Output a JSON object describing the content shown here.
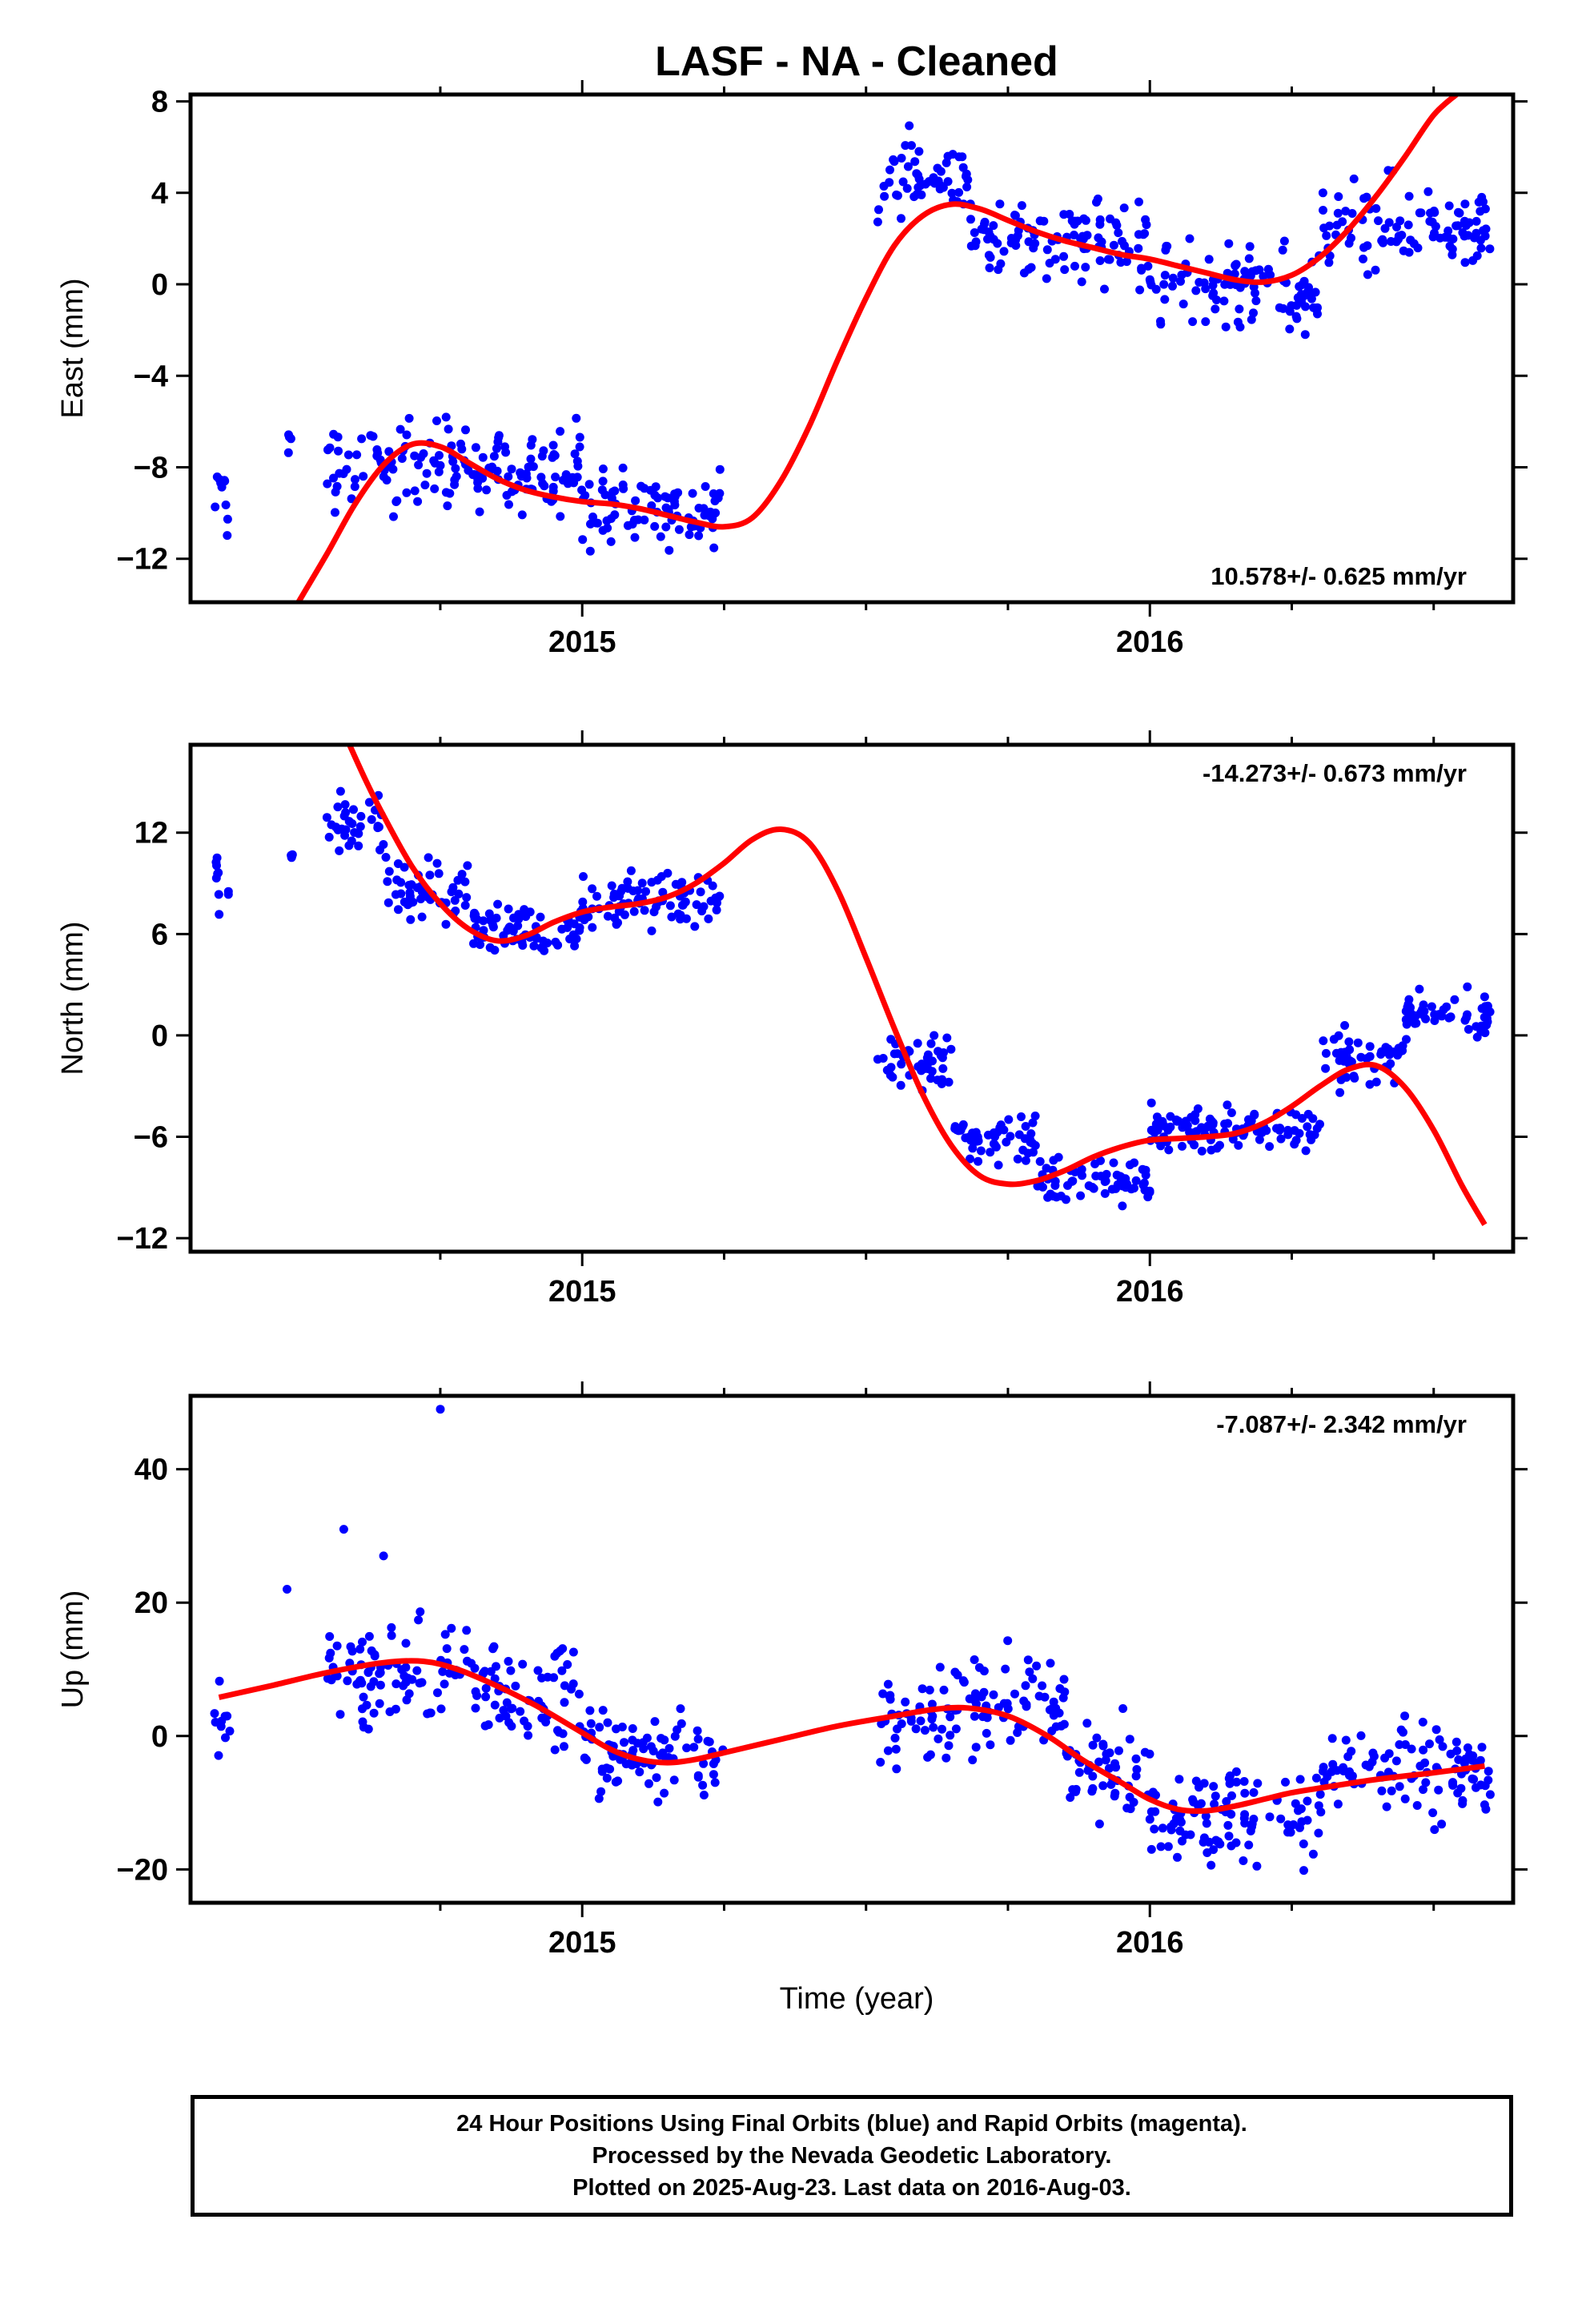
{
  "title": "LASF  - NA - Cleaned",
  "colors": {
    "points": "#0000ff",
    "fit": "#ff0000",
    "axes": "#000000",
    "background": "#ffffff"
  },
  "xlabel": "Time (year)",
  "footer": {
    "line1": "24 Hour Positions Using Final Orbits (blue) and Rapid Orbits (magenta).",
    "line2": "Processed by the Nevada Geodetic Laboratory.",
    "line3": "Plotted on 2025-Aug-23. Last data on 2016-Aug-03."
  },
  "chart_data": [
    {
      "type": "scatter",
      "name_key": "east",
      "ylabel": "East (mm)",
      "rate_label": "10.578+/- 0.625 mm/yr",
      "rate_position": "bottom-right",
      "xlim": [
        2014.31,
        2016.64
      ],
      "ylim": [
        -13.9,
        8.3
      ],
      "x_tick_labels": [
        "2015",
        "2016"
      ],
      "y_ticks": [
        -12,
        -8,
        -4,
        0,
        4,
        8
      ],
      "data_gap": [
        2015.25,
        2015.51
      ],
      "clusters": [
        {
          "x_range": [
            2014.35,
            2014.38
          ],
          "y_center": -9.5,
          "spread": 1.6
        },
        {
          "x_range": [
            2014.48,
            2014.49
          ],
          "y_center": -6.5,
          "spread": 1.0
        },
        {
          "x_range": [
            2014.55,
            2015.0
          ],
          "y_center": -8.0,
          "spread": 1.7
        },
        {
          "x_range": [
            2015.0,
            2015.25
          ],
          "y_center": -9.8,
          "spread": 1.5
        },
        {
          "x_range": [
            2015.52,
            2015.68
          ],
          "y_center": 4.6,
          "spread": 1.6
        },
        {
          "x_range": [
            2015.68,
            2016.0
          ],
          "y_center": 2.0,
          "spread": 1.6
        },
        {
          "x_range": [
            2016.0,
            2016.3
          ],
          "y_center": -0.3,
          "spread": 1.7
        },
        {
          "x_range": [
            2016.3,
            2016.6
          ],
          "y_center": 2.5,
          "spread": 1.8
        }
      ],
      "fit": {
        "x": [
          2014.5,
          2014.55,
          2014.6,
          2014.65,
          2014.7,
          2014.75,
          2014.8,
          2014.85,
          2014.9,
          2014.95,
          2015.0,
          2015.05,
          2015.1,
          2015.15,
          2015.2,
          2015.25,
          2015.3,
          2015.35,
          2015.4,
          2015.45,
          2015.5,
          2015.55,
          2015.6,
          2015.65,
          2015.7,
          2015.75,
          2015.8,
          2015.85,
          2015.9,
          2015.95,
          2016.0,
          2016.05,
          2016.1,
          2016.15,
          2016.2,
          2016.25,
          2016.3,
          2016.35,
          2016.4,
          2016.45,
          2016.5,
          2016.54
        ],
        "y": [
          -13.9,
          -11.8,
          -9.6,
          -7.9,
          -7.0,
          -7.1,
          -7.8,
          -8.5,
          -9.0,
          -9.3,
          -9.5,
          -9.6,
          -9.8,
          -10.1,
          -10.4,
          -10.6,
          -10.2,
          -8.6,
          -6.2,
          -3.3,
          -0.6,
          1.7,
          3.0,
          3.5,
          3.3,
          2.8,
          2.3,
          1.9,
          1.6,
          1.3,
          1.1,
          0.8,
          0.5,
          0.2,
          0.1,
          0.4,
          1.2,
          2.4,
          3.9,
          5.6,
          7.4,
          8.3
        ]
      }
    },
    {
      "type": "scatter",
      "name_key": "north",
      "ylabel": "North (mm)",
      "rate_label": "-14.273+/- 0.673 mm/yr",
      "rate_position": "top-right",
      "xlim": [
        2014.31,
        2016.64
      ],
      "ylim": [
        -12.8,
        17.2
      ],
      "x_tick_labels": [
        "2015",
        "2016"
      ],
      "y_ticks": [
        -12,
        -6,
        0,
        6,
        12
      ],
      "data_gap": [
        2015.25,
        2015.51
      ],
      "clusters": [
        {
          "x_range": [
            2014.35,
            2014.38
          ],
          "y_center": 8.8,
          "spread": 1.6
        },
        {
          "x_range": [
            2014.48,
            2014.49
          ],
          "y_center": 10.8,
          "spread": 0.4
        },
        {
          "x_range": [
            2014.55,
            2014.65
          ],
          "y_center": 12.5,
          "spread": 1.6
        },
        {
          "x_range": [
            2014.65,
            2014.8
          ],
          "y_center": 8.5,
          "spread": 1.5
        },
        {
          "x_range": [
            2014.8,
            2015.0
          ],
          "y_center": 6.3,
          "spread": 1.2
        },
        {
          "x_range": [
            2015.0,
            2015.25
          ],
          "y_center": 8.0,
          "spread": 1.4
        },
        {
          "x_range": [
            2015.52,
            2015.65
          ],
          "y_center": -1.5,
          "spread": 1.6
        },
        {
          "x_range": [
            2015.65,
            2015.8
          ],
          "y_center": -6.0,
          "spread": 1.5
        },
        {
          "x_range": [
            2015.8,
            2016.0
          ],
          "y_center": -8.6,
          "spread": 1.3
        },
        {
          "x_range": [
            2016.0,
            2016.3
          ],
          "y_center": -5.5,
          "spread": 1.2
        },
        {
          "x_range": [
            2016.3,
            2016.45
          ],
          "y_center": -1.5,
          "spread": 1.3
        },
        {
          "x_range": [
            2016.45,
            2016.6
          ],
          "y_center": 1.2,
          "spread": 1.1
        }
      ],
      "fit": {
        "x": [
          2014.59,
          2014.62,
          2014.65,
          2014.7,
          2014.75,
          2014.8,
          2014.85,
          2014.9,
          2014.95,
          2015.0,
          2015.05,
          2015.1,
          2015.15,
          2015.2,
          2015.25,
          2015.3,
          2015.35,
          2015.4,
          2015.45,
          2015.5,
          2015.55,
          2015.6,
          2015.65,
          2015.7,
          2015.75,
          2015.8,
          2015.85,
          2015.9,
          2015.95,
          2016.0,
          2016.05,
          2016.1,
          2016.15,
          2016.2,
          2016.25,
          2016.3,
          2016.35,
          2016.4,
          2016.45,
          2016.5,
          2016.55,
          2016.59
        ],
        "y": [
          17.2,
          15.0,
          13.0,
          10.0,
          7.8,
          6.3,
          5.6,
          5.9,
          6.7,
          7.3,
          7.6,
          7.8,
          8.2,
          9.0,
          10.2,
          11.6,
          12.2,
          11.4,
          8.6,
          4.6,
          0.4,
          -3.5,
          -6.5,
          -8.3,
          -8.8,
          -8.6,
          -8.0,
          -7.2,
          -6.6,
          -6.2,
          -6.1,
          -6.0,
          -5.8,
          -5.2,
          -4.2,
          -3.0,
          -2.0,
          -1.8,
          -3.1,
          -5.6,
          -8.9,
          -11.2
        ]
      }
    },
    {
      "type": "scatter",
      "name_key": "up",
      "ylabel": "Up (mm)",
      "rate_label": "-7.087+/- 2.342 mm/yr",
      "rate_position": "top-right",
      "xlim": [
        2014.31,
        2016.64
      ],
      "ylim": [
        -25,
        51
      ],
      "x_tick_labels": [
        "2015",
        "2016"
      ],
      "y_ticks": [
        -20,
        0,
        20,
        40
      ],
      "data_gap": [
        2015.25,
        2015.51
      ],
      "outliers": [
        [
          2014.75,
          49.0
        ],
        [
          2014.48,
          22.0
        ],
        [
          2014.58,
          31.0
        ],
        [
          2014.65,
          27.0
        ]
      ],
      "clusters": [
        {
          "x_range": [
            2014.35,
            2014.38
          ],
          "y_center": 2.0,
          "spread": 8.0
        },
        {
          "x_range": [
            2014.55,
            2014.8
          ],
          "y_center": 10.0,
          "spread": 6.5
        },
        {
          "x_range": [
            2014.8,
            2015.0
          ],
          "y_center": 7.0,
          "spread": 7.0
        },
        {
          "x_range": [
            2015.0,
            2015.25
          ],
          "y_center": -3.0,
          "spread": 6.5
        },
        {
          "x_range": [
            2015.52,
            2015.65
          ],
          "y_center": 1.5,
          "spread": 6.5
        },
        {
          "x_range": [
            2015.65,
            2015.85
          ],
          "y_center": 5.0,
          "spread": 6.0
        },
        {
          "x_range": [
            2015.85,
            2016.0
          ],
          "y_center": -6.0,
          "spread": 6.5
        },
        {
          "x_range": [
            2016.0,
            2016.3
          ],
          "y_center": -12.0,
          "spread": 6.0
        },
        {
          "x_range": [
            2016.3,
            2016.6
          ],
          "y_center": -5.0,
          "spread": 6.5
        }
      ],
      "fit": {
        "x": [
          2014.36,
          2014.45,
          2014.55,
          2014.65,
          2014.72,
          2014.78,
          2014.85,
          2014.92,
          2015.0,
          2015.05,
          2015.1,
          2015.15,
          2015.2,
          2015.25,
          2015.35,
          2015.45,
          2015.55,
          2015.62,
          2015.68,
          2015.75,
          2015.82,
          2015.88,
          2015.95,
          2016.0,
          2016.05,
          2016.1,
          2016.15,
          2016.2,
          2016.25,
          2016.3,
          2016.4,
          2016.5,
          2016.59
        ],
        "y": [
          5.8,
          7.5,
          9.5,
          11.0,
          11.2,
          10.0,
          7.5,
          4.5,
          0.5,
          -2.0,
          -3.5,
          -4.0,
          -3.5,
          -2.5,
          -0.5,
          1.5,
          3.0,
          4.0,
          4.2,
          3.0,
          0.0,
          -3.5,
          -7.0,
          -9.5,
          -11.0,
          -11.2,
          -10.5,
          -9.5,
          -8.5,
          -7.8,
          -6.5,
          -5.5,
          -4.5
        ]
      }
    }
  ]
}
